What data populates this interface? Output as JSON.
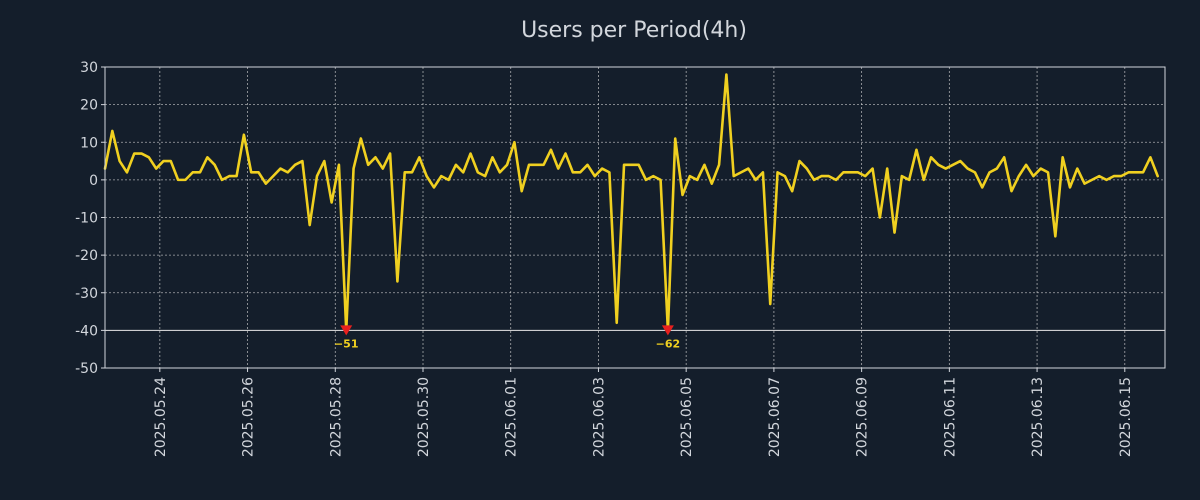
{
  "chart_data": {
    "type": "line",
    "title": "Users per Period(4h)",
    "xlabel": "",
    "ylabel": "",
    "y_range": [
      -50,
      30
    ],
    "y_ticks": [
      30,
      20,
      10,
      0,
      -10,
      -20,
      -30,
      -40,
      -50
    ],
    "y_tick_labels": [
      "30",
      "20",
      "10",
      "0",
      "-10",
      "-20",
      "-30",
      "-40",
      "-50"
    ],
    "x_range": [
      "2025-05-22T18:00",
      "2025-06-15T22:00"
    ],
    "x_ticks": [
      "2025-05-24",
      "2025-05-26",
      "2025-05-28",
      "2025-05-30",
      "2025-06-01",
      "2025-06-03",
      "2025-06-05",
      "2025-06-07",
      "2025-06-09",
      "2025-06-11",
      "2025-06-13",
      "2025-06-15"
    ],
    "x_tick_labels": [
      "2025.05.24",
      "2025.05.26",
      "2025.05.28",
      "2025.05.30",
      "2025.06.01",
      "2025.06.03",
      "2025.06.05",
      "2025.06.07",
      "2025.06.09",
      "2025.06.11",
      "2025.06.13",
      "2025.06.15"
    ],
    "grid": true,
    "clip_floor": -40,
    "colors": {
      "background": "#141e2b",
      "line": "#f0d020",
      "marker": "#e8201e",
      "text": "#d2d6dc",
      "grid": "#d8d8d8"
    },
    "series": [
      {
        "points": [
          [
            "2025-05-22T18:00",
            3
          ],
          [
            "2025-05-22T22:00",
            13
          ],
          [
            "2025-05-23T02:00",
            5
          ],
          [
            "2025-05-23T06:00",
            2
          ],
          [
            "2025-05-23T10:00",
            7
          ],
          [
            "2025-05-23T14:00",
            7
          ],
          [
            "2025-05-23T18:00",
            6
          ],
          [
            "2025-05-23T22:00",
            3
          ],
          [
            "2025-05-24T02:00",
            5
          ],
          [
            "2025-05-24T06:00",
            5
          ],
          [
            "2025-05-24T10:00",
            0
          ],
          [
            "2025-05-24T14:00",
            0
          ],
          [
            "2025-05-24T18:00",
            2
          ],
          [
            "2025-05-24T22:00",
            2
          ],
          [
            "2025-05-25T02:00",
            6
          ],
          [
            "2025-05-25T06:00",
            4
          ],
          [
            "2025-05-25T10:00",
            0
          ],
          [
            "2025-05-25T14:00",
            1
          ],
          [
            "2025-05-25T18:00",
            1
          ],
          [
            "2025-05-25T22:00",
            12
          ],
          [
            "2025-05-26T02:00",
            2
          ],
          [
            "2025-05-26T06:00",
            2
          ],
          [
            "2025-05-26T10:00",
            -1
          ],
          [
            "2025-05-26T14:00",
            1
          ],
          [
            "2025-05-26T18:00",
            3
          ],
          [
            "2025-05-26T22:00",
            2
          ],
          [
            "2025-05-27T02:00",
            4
          ],
          [
            "2025-05-27T06:00",
            5
          ],
          [
            "2025-05-27T10:00",
            -12
          ],
          [
            "2025-05-27T14:00",
            1
          ],
          [
            "2025-05-27T18:00",
            5
          ],
          [
            "2025-05-27T22:00",
            -6
          ],
          [
            "2025-05-28T02:00",
            4
          ],
          [
            "2025-05-28T06:00",
            -51
          ],
          [
            "2025-05-28T10:00",
            3
          ],
          [
            "2025-05-28T14:00",
            11
          ],
          [
            "2025-05-28T18:00",
            4
          ],
          [
            "2025-05-28T22:00",
            6
          ],
          [
            "2025-05-29T02:00",
            3
          ],
          [
            "2025-05-29T06:00",
            7
          ],
          [
            "2025-05-29T10:00",
            -27
          ],
          [
            "2025-05-29T14:00",
            2
          ],
          [
            "2025-05-29T18:00",
            2
          ],
          [
            "2025-05-29T22:00",
            6
          ],
          [
            "2025-05-30T02:00",
            1
          ],
          [
            "2025-05-30T06:00",
            -2
          ],
          [
            "2025-05-30T10:00",
            1
          ],
          [
            "2025-05-30T14:00",
            0
          ],
          [
            "2025-05-30T18:00",
            4
          ],
          [
            "2025-05-30T22:00",
            2
          ],
          [
            "2025-05-31T02:00",
            7
          ],
          [
            "2025-05-31T06:00",
            2
          ],
          [
            "2025-05-31T10:00",
            1
          ],
          [
            "2025-05-31T14:00",
            6
          ],
          [
            "2025-05-31T18:00",
            2
          ],
          [
            "2025-05-31T22:00",
            4
          ],
          [
            "2025-06-01T02:00",
            10
          ],
          [
            "2025-06-01T06:00",
            -3
          ],
          [
            "2025-06-01T10:00",
            4
          ],
          [
            "2025-06-01T14:00",
            4
          ],
          [
            "2025-06-01T18:00",
            4
          ],
          [
            "2025-06-01T22:00",
            8
          ],
          [
            "2025-06-02T02:00",
            3
          ],
          [
            "2025-06-02T06:00",
            7
          ],
          [
            "2025-06-02T10:00",
            2
          ],
          [
            "2025-06-02T14:00",
            2
          ],
          [
            "2025-06-02T18:00",
            4
          ],
          [
            "2025-06-02T22:00",
            1
          ],
          [
            "2025-06-03T02:00",
            3
          ],
          [
            "2025-06-03T06:00",
            2
          ],
          [
            "2025-06-03T10:00",
            -38
          ],
          [
            "2025-06-03T14:00",
            4
          ],
          [
            "2025-06-03T18:00",
            4
          ],
          [
            "2025-06-03T22:00",
            4
          ],
          [
            "2025-06-04T02:00",
            0
          ],
          [
            "2025-06-04T06:00",
            1
          ],
          [
            "2025-06-04T10:00",
            0
          ],
          [
            "2025-06-04T14:00",
            -62
          ],
          [
            "2025-06-04T18:00",
            11
          ],
          [
            "2025-06-04T22:00",
            -4
          ],
          [
            "2025-06-05T02:00",
            1
          ],
          [
            "2025-06-05T06:00",
            0
          ],
          [
            "2025-06-05T10:00",
            4
          ],
          [
            "2025-06-05T14:00",
            -1
          ],
          [
            "2025-06-05T18:00",
            4
          ],
          [
            "2025-06-05T22:00",
            28
          ],
          [
            "2025-06-06T02:00",
            1
          ],
          [
            "2025-06-06T06:00",
            2
          ],
          [
            "2025-06-06T10:00",
            3
          ],
          [
            "2025-06-06T14:00",
            0
          ],
          [
            "2025-06-06T18:00",
            2
          ],
          [
            "2025-06-06T22:00",
            -33
          ],
          [
            "2025-06-07T02:00",
            2
          ],
          [
            "2025-06-07T06:00",
            1
          ],
          [
            "2025-06-07T10:00",
            -3
          ],
          [
            "2025-06-07T14:00",
            5
          ],
          [
            "2025-06-07T18:00",
            3
          ],
          [
            "2025-06-07T22:00",
            0
          ],
          [
            "2025-06-08T02:00",
            1
          ],
          [
            "2025-06-08T06:00",
            1
          ],
          [
            "2025-06-08T10:00",
            0
          ],
          [
            "2025-06-08T14:00",
            2
          ],
          [
            "2025-06-08T18:00",
            2
          ],
          [
            "2025-06-08T22:00",
            2
          ],
          [
            "2025-06-09T02:00",
            1
          ],
          [
            "2025-06-09T06:00",
            3
          ],
          [
            "2025-06-09T10:00",
            -10
          ],
          [
            "2025-06-09T14:00",
            3
          ],
          [
            "2025-06-09T18:00",
            -14
          ],
          [
            "2025-06-09T22:00",
            1
          ],
          [
            "2025-06-10T02:00",
            0
          ],
          [
            "2025-06-10T06:00",
            8
          ],
          [
            "2025-06-10T10:00",
            0
          ],
          [
            "2025-06-10T14:00",
            6
          ],
          [
            "2025-06-10T18:00",
            4
          ],
          [
            "2025-06-10T22:00",
            3
          ],
          [
            "2025-06-11T02:00",
            4
          ],
          [
            "2025-06-11T06:00",
            5
          ],
          [
            "2025-06-11T10:00",
            3
          ],
          [
            "2025-06-11T14:00",
            2
          ],
          [
            "2025-06-11T18:00",
            -2
          ],
          [
            "2025-06-11T22:00",
            2
          ],
          [
            "2025-06-12T02:00",
            3
          ],
          [
            "2025-06-12T06:00",
            6
          ],
          [
            "2025-06-12T10:00",
            -3
          ],
          [
            "2025-06-12T14:00",
            1
          ],
          [
            "2025-06-12T18:00",
            4
          ],
          [
            "2025-06-12T22:00",
            1
          ],
          [
            "2025-06-13T02:00",
            3
          ],
          [
            "2025-06-13T06:00",
            2
          ],
          [
            "2025-06-13T10:00",
            -15
          ],
          [
            "2025-06-13T14:00",
            6
          ],
          [
            "2025-06-13T18:00",
            -2
          ],
          [
            "2025-06-13T22:00",
            3
          ],
          [
            "2025-06-14T02:00",
            -1
          ],
          [
            "2025-06-14T06:00",
            0
          ],
          [
            "2025-06-14T10:00",
            1
          ],
          [
            "2025-06-14T14:00",
            0
          ],
          [
            "2025-06-14T18:00",
            1
          ],
          [
            "2025-06-14T22:00",
            1
          ],
          [
            "2025-06-15T02:00",
            2
          ],
          [
            "2025-06-15T06:00",
            2
          ],
          [
            "2025-06-15T10:00",
            2
          ],
          [
            "2025-06-15T14:00",
            6
          ],
          [
            "2025-06-15T18:00",
            1
          ]
        ]
      }
    ],
    "annotations": [
      {
        "x": "2025-05-28T06:00",
        "value": -51,
        "text": "−51"
      },
      {
        "x": "2025-06-04T14:00",
        "value": -62,
        "text": "−62"
      }
    ]
  }
}
